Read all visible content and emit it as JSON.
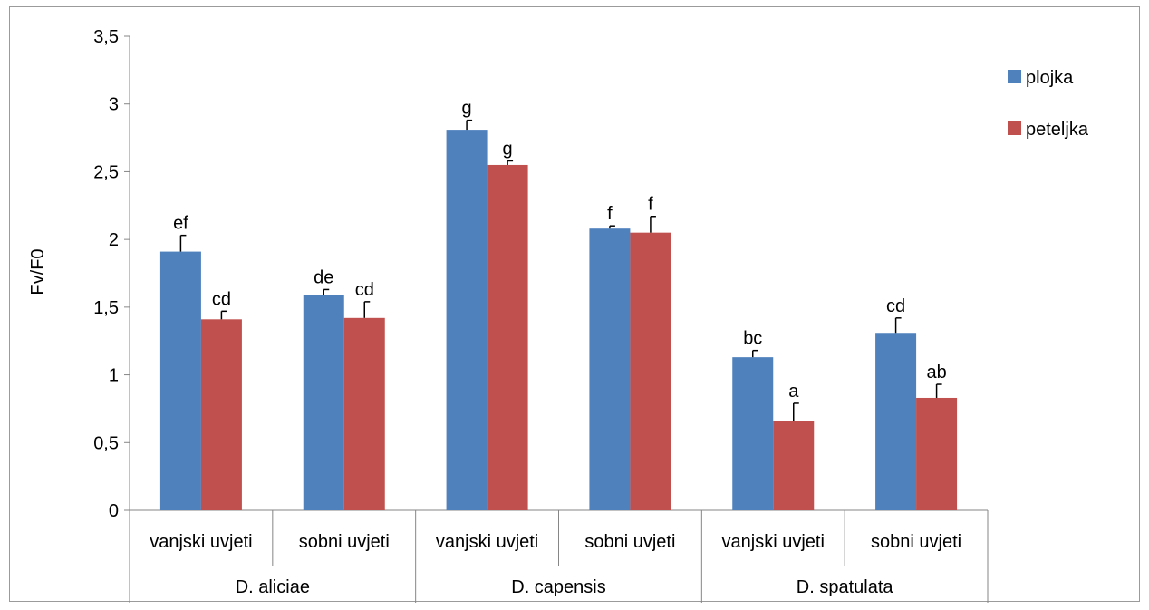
{
  "chart_data": {
    "type": "bar",
    "ylabel": "Fv/F0",
    "xlabel": "",
    "title": "",
    "ylim": [
      0,
      3.5
    ],
    "yticks": [
      "0",
      "0,5",
      "1",
      "1,5",
      "2",
      "2,5",
      "3",
      "3,5"
    ],
    "ytick_values": [
      0,
      0.5,
      1,
      1.5,
      2,
      2.5,
      3,
      3.5
    ],
    "grid": false,
    "legend_position": "right",
    "groups": [
      {
        "label": "D. aliciae",
        "categories": [
          "vanjski uvjeti",
          "sobni uvjeti"
        ]
      },
      {
        "label": "D. capensis",
        "categories": [
          "vanjski uvjeti",
          "sobni uvjeti"
        ]
      },
      {
        "label": "D. spatulata",
        "categories": [
          "vanjski uvjeti",
          "sobni uvjeti"
        ]
      }
    ],
    "categories": [
      "vanjski uvjeti",
      "sobni uvjeti",
      "vanjski uvjeti",
      "sobni uvjeti",
      "vanjski uvjeti",
      "sobni uvjeti"
    ],
    "series": [
      {
        "name": "plojka",
        "color": "#4F81BD",
        "values": [
          1.91,
          1.59,
          2.81,
          2.08,
          1.13,
          1.31
        ],
        "errors": [
          0.12,
          0.04,
          0.07,
          0.02,
          0.05,
          0.11
        ],
        "labels": [
          "ef",
          "de",
          "g",
          "f",
          "bc",
          "cd"
        ]
      },
      {
        "name": "peteljka",
        "color": "#C0504D",
        "values": [
          1.41,
          1.42,
          2.55,
          2.05,
          0.66,
          0.83
        ],
        "errors": [
          0.06,
          0.12,
          0.03,
          0.12,
          0.13,
          0.1
        ],
        "labels": [
          "cd",
          "cd",
          "g",
          "f",
          "a",
          "ab"
        ]
      }
    ]
  }
}
